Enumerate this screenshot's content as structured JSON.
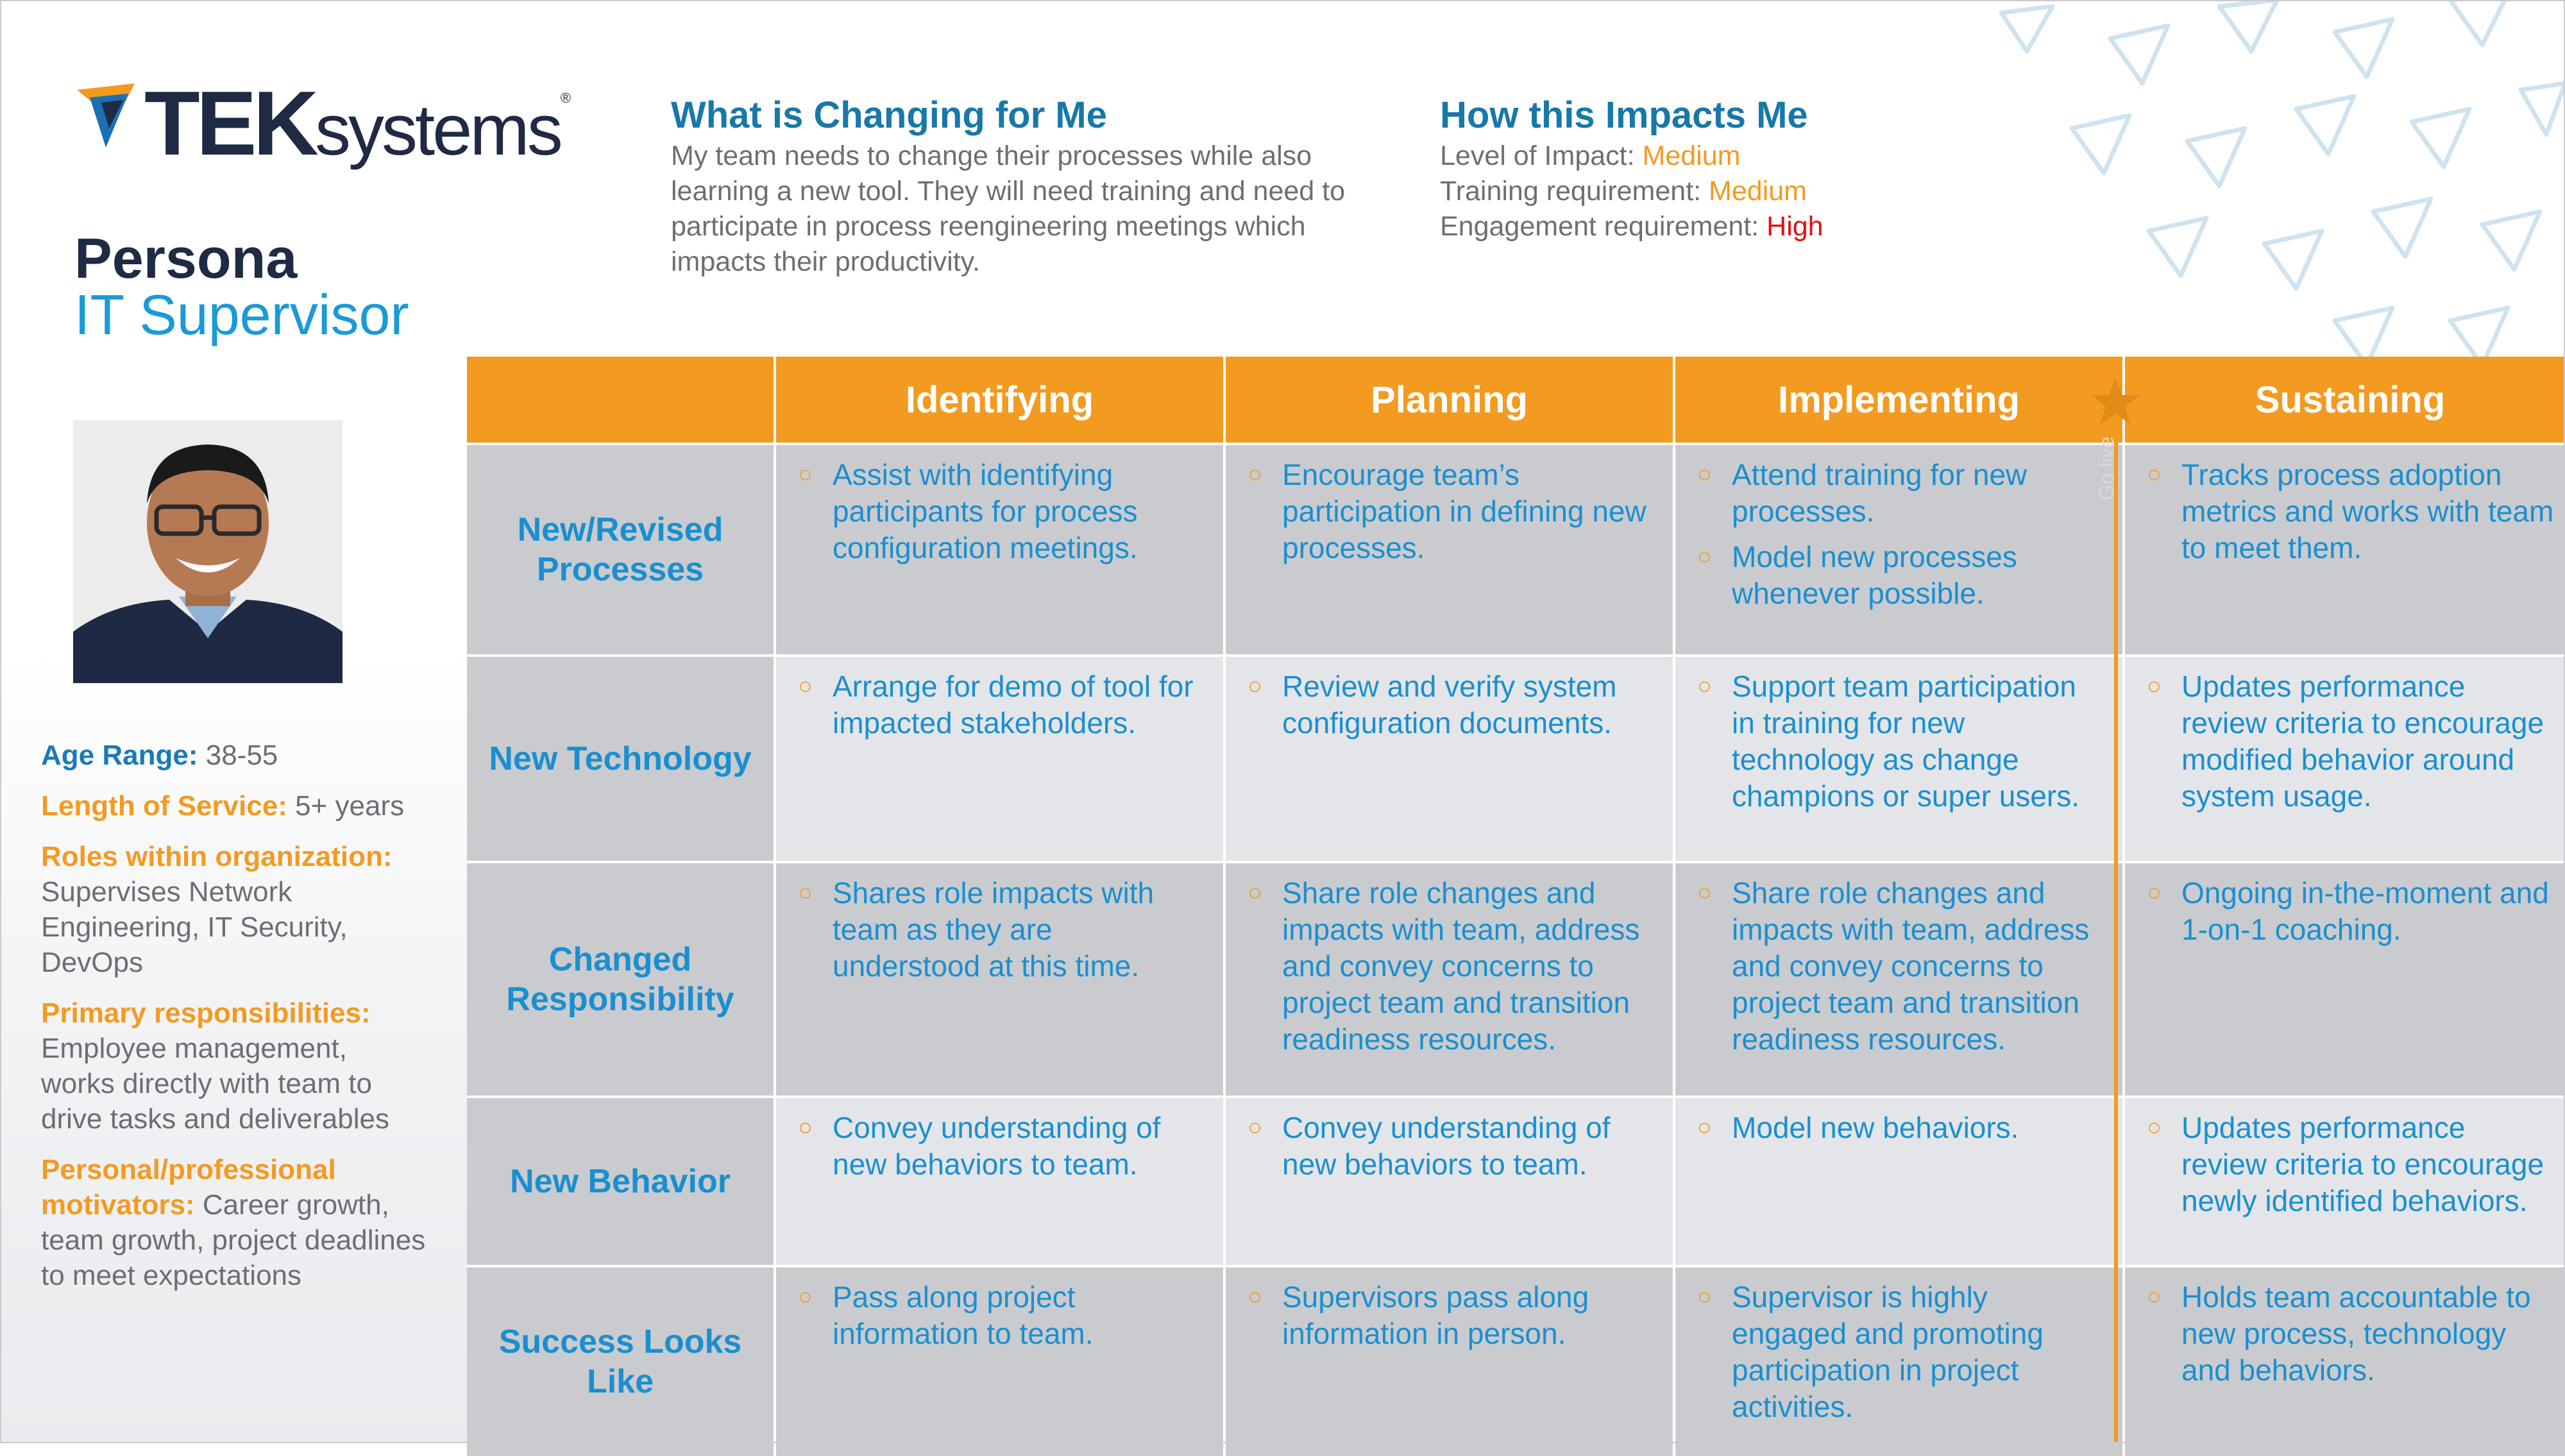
{
  "logo": {
    "brand_bold": "TEK",
    "brand_light": "systems",
    "registered": "®"
  },
  "persona": {
    "label": "Persona",
    "role": "IT Supervisor"
  },
  "profile": {
    "age_label": "Age Range:",
    "age_value": "38-55",
    "service_label": "Length of Service:",
    "service_value": "5+ years",
    "roles_label": "Roles within organization:",
    "roles_value": "Supervises Network Engineering, IT Security, DevOps",
    "resp_label": "Primary responsibilities:",
    "resp_value": "Employee management, works directly with team to drive tasks and deliverables",
    "motiv_label": "Personal/professional motivators:",
    "motiv_value": "Career growth, team growth, project deadlines to meet expectations"
  },
  "changing": {
    "title": "What is Changing for Me",
    "body": "My team needs to change their processes while also learning a new tool. They will need training and need to participate in process reengineering meetings which impacts their productivity."
  },
  "impacts": {
    "title": "How this Impacts Me",
    "level_label": "Level of Impact: ",
    "level_value": "Medium",
    "training_label": "Training requirement: ",
    "training_value": "Medium",
    "engagement_label": "Engagement requirement: ",
    "engagement_value": "High"
  },
  "marker": {
    "text": "Go live"
  },
  "colors": {
    "orange": "#f39a21",
    "blue": "#1a8fd0",
    "navy": "#1f2a44",
    "high": "#e01010"
  },
  "table": {
    "phases": [
      "Identifying",
      "Planning",
      "Implementing",
      "Sustaining"
    ],
    "rows": [
      {
        "label": "New/Revised Processes",
        "cells": [
          [
            "Assist with identifying participants for process configuration meetings."
          ],
          [
            "Encourage team’s participation in defining new processes."
          ],
          [
            "Attend training for new processes.",
            "Model new processes whenever possible."
          ],
          [
            "Tracks process adoption metrics and works with team to meet them."
          ]
        ]
      },
      {
        "label": "New Technology",
        "cells": [
          [
            "Arrange for demo of tool for impacted stakeholders."
          ],
          [
            "Review and verify system configuration documents."
          ],
          [
            "Support team participation in training for new technology as change champions or super users."
          ],
          [
            "Updates performance review criteria to encourage modified behavior around system usage."
          ]
        ]
      },
      {
        "label": "Changed Responsibility",
        "cells": [
          [
            "Shares role impacts with team as they are understood at this time."
          ],
          [
            "Share role changes and impacts with team, address and convey concerns to project team and transition readiness resources."
          ],
          [
            "Share role changes and impacts with team, address and convey concerns to project team and transition readiness resources."
          ],
          [
            "Ongoing in-the-moment and 1-on-1 coaching."
          ]
        ]
      },
      {
        "label": "New Behavior",
        "cells": [
          [
            "Convey understanding of new behaviors to team."
          ],
          [
            "Convey understanding of new behaviors to team."
          ],
          [
            "Model new behaviors."
          ],
          [
            "Updates performance review criteria to encourage newly identified behaviors."
          ]
        ]
      },
      {
        "label": "Success Looks Like",
        "cells": [
          [
            "Pass along project information to team."
          ],
          [
            "Supervisors pass along information in person."
          ],
          [
            "Supervisor is highly engaged and promoting participation in project activities."
          ],
          [
            "Holds team accountable to new process, technology and behaviors."
          ]
        ]
      }
    ]
  }
}
